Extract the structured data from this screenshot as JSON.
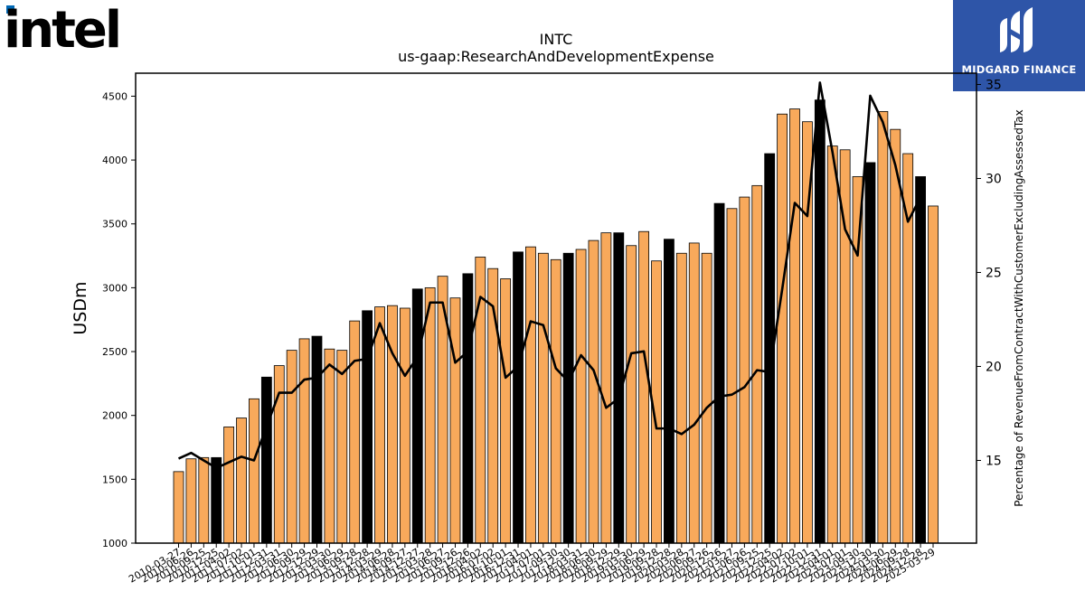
{
  "logos": {
    "left": {
      "text": "intel",
      "color": "#000000",
      "accent": "#0068b5"
    },
    "right": {
      "text": "MIDGARD FINANCE",
      "background": "#2e55a8"
    }
  },
  "chart_data": {
    "type": "bar",
    "title": "INTC",
    "subtitle": "us-gaap:ResearchAndDevelopmentExpense",
    "ylabel": "USDm",
    "y2label": "Percentage of RevenueFromContractWithCustomerExcludingAssessedTax",
    "ylim": [
      1000,
      4680
    ],
    "y2lim": [
      10.6,
      35.6
    ],
    "yticks": [
      1000,
      1500,
      2000,
      2500,
      3000,
      3500,
      4000,
      4500
    ],
    "y2ticks": [
      15,
      20,
      25,
      30,
      35
    ],
    "colors": {
      "bar": "#f8a95b",
      "bar_q4": "#000000",
      "line": "#000000"
    },
    "x": [
      "2010-03-27",
      "2010-06-26",
      "2010-09-25",
      "2010-12-25",
      "2011-04-02",
      "2011-07-02",
      "2011-10-01",
      "2011-12-31",
      "2012-03-31",
      "2012-06-30",
      "2012-09-29",
      "2012-12-29",
      "2013-03-30",
      "2013-06-29",
      "2013-09-28",
      "2013-12-28",
      "2014-03-29",
      "2014-06-28",
      "2014-09-27",
      "2014-12-27",
      "2015-03-28",
      "2015-06-27",
      "2015-09-26",
      "2015-12-26",
      "2016-04-02",
      "2016-07-02",
      "2016-10-01",
      "2016-12-31",
      "2017-04-01",
      "2017-07-01",
      "2017-09-30",
      "2017-12-30",
      "2018-03-31",
      "2018-06-30",
      "2018-09-29",
      "2018-12-29",
      "2019-03-30",
      "2019-06-29",
      "2019-09-28",
      "2019-12-28",
      "2020-03-28",
      "2020-06-27",
      "2020-09-26",
      "2020-12-26",
      "2021-03-27",
      "2021-06-26",
      "2021-09-25",
      "2021-12-25",
      "2022-04-02",
      "2022-07-02",
      "2022-10-01",
      "2022-12-31",
      "2023-04-01",
      "2023-07-01",
      "2023-09-30",
      "2023-12-30",
      "2024-03-30",
      "2024-06-29",
      "2024-09-28",
      "2024-12-28",
      "2025-03-29"
    ],
    "xtick_labels": [
      "2010-03-27",
      "2010-06-26",
      "2010-09-25",
      "2010-12-25",
      "2011-04-02",
      "2011-07-02",
      "2011-10-01",
      "2011-12-31",
      "2012-03-31",
      "2012-06-30",
      "2012-09-29",
      "2012-12-29",
      "2013-03-30",
      "2013-06-29",
      "2013-09-28",
      "2013-12-28",
      "2014-03-29",
      "2014-06-28",
      "2014-09-27",
      "2014-12-27",
      "2015-03-28",
      "2015-06-27",
      "2015-09-26",
      "2015-12-26",
      "2016-04-02",
      "2016-07-02",
      "2016-10-01",
      "2016-12-31",
      "2017-04-01",
      "2017-07-01",
      "2017-09-30",
      "2017-12-30",
      "2018-03-31",
      "2018-06-30",
      "2018-09-29",
      "2018-12-29",
      "2019-03-30",
      "2019-06-29",
      "2019-09-28",
      "2019-12-28",
      "2020-03-28",
      "2020-06-27",
      "2020-09-26",
      "2020-12-26",
      "2021-03-27",
      "2021-06-26",
      "2021-09-25",
      "2021-12-25",
      "2022-04-02",
      "2022-07-02",
      "2022-10-01",
      "2022-12-31",
      "2023-04-01",
      "2023-07-01",
      "2023-09-30",
      "2023-12-30",
      "2024-03-30",
      "2024-06-29",
      "2024-09-28",
      "2024-12-28",
      "2025-03-29"
    ],
    "q4_index": [
      3,
      7,
      11,
      15,
      19,
      23,
      27,
      31,
      35,
      39,
      43,
      47,
      51,
      55,
      59
    ],
    "values": [
      1560,
      1660,
      1670,
      1670,
      1910,
      1980,
      2130,
      2300,
      2390,
      2510,
      2600,
      2620,
      2520,
      2510,
      2740,
      2820,
      2850,
      2860,
      2840,
      2990,
      3000,
      3090,
      2920,
      3110,
      3240,
      3150,
      3070,
      3280,
      3320,
      3270,
      3220,
      3270,
      3300,
      3370,
      3430,
      3430,
      3330,
      3440,
      3210,
      3380,
      3270,
      3350,
      3270,
      3660,
      3620,
      3710,
      3800,
      4050,
      4360,
      4400,
      4300,
      4470,
      4110,
      4080,
      3870,
      3980,
      4380,
      4240,
      4050,
      3870,
      3640
    ],
    "percent": [
      15.1,
      15.4,
      15.0,
      14.6,
      14.9,
      15.2,
      15.0,
      16.8,
      18.6,
      18.6,
      19.3,
      19.4,
      20.1,
      19.6,
      20.3,
      20.4,
      22.3,
      20.7,
      19.5,
      20.5,
      23.4,
      23.4,
      20.2,
      20.8,
      23.7,
      23.2,
      19.4,
      20.0,
      22.4,
      22.2,
      19.9,
      19.2,
      20.6,
      19.8,
      17.8,
      18.3,
      20.7,
      20.8,
      16.7,
      16.7,
      16.4,
      16.9,
      17.8,
      18.4,
      18.5,
      18.9,
      19.8,
      19.7,
      24.1,
      28.7,
      28.0,
      35.1,
      31.4,
      27.3,
      25.9,
      34.4,
      33.0,
      30.7,
      27.7,
      29.0,
      null
    ]
  }
}
